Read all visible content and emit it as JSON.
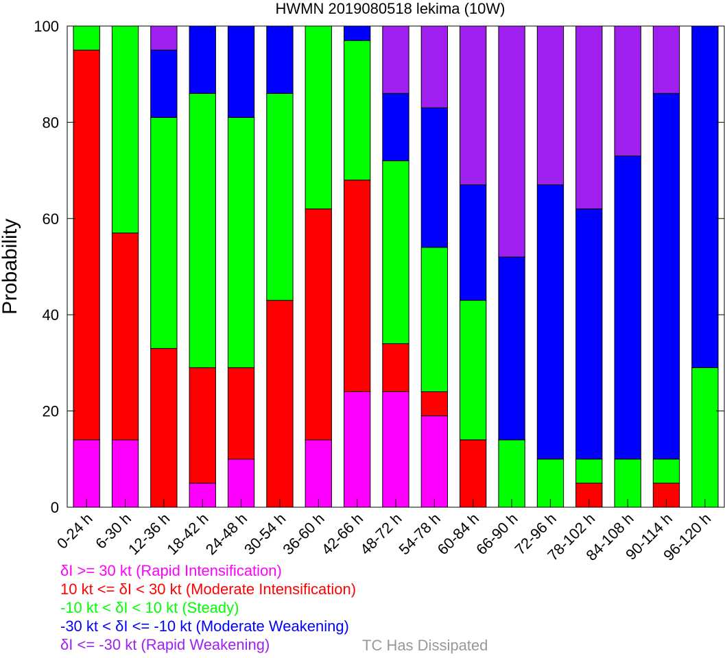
{
  "chart_data": {
    "type": "bar",
    "stacked": true,
    "title": "HWMN 2019080518 lekima (10W)",
    "ylabel": "Probability",
    "xlabel": "",
    "ylim": [
      0,
      100
    ],
    "yticks": [
      0,
      20,
      40,
      60,
      80,
      100
    ],
    "categories": [
      "0-24 h",
      "6-30 h",
      "12-36 h",
      "18-42 h",
      "24-48 h",
      "30-54 h",
      "36-60 h",
      "42-66 h",
      "48-72 h",
      "54-78 h",
      "60-84 h",
      "66-90 h",
      "72-96 h",
      "78-102 h",
      "84-108 h",
      "90-114 h",
      "96-120 h"
    ],
    "series": [
      {
        "name": "δI >= 30 kt (Rapid Intensification)",
        "color": "#ff00ff",
        "values": [
          14,
          14,
          0,
          5,
          10,
          0,
          14,
          24,
          24,
          19,
          0,
          0,
          0,
          0,
          0,
          0,
          0
        ]
      },
      {
        "name": "10 kt <= δI < 30 kt (Moderate Intensification)",
        "color": "#ff0000",
        "values": [
          81,
          43,
          33,
          24,
          19,
          43,
          48,
          44,
          10,
          5,
          14,
          0,
          0,
          5,
          0,
          5,
          0
        ]
      },
      {
        "name": "-10 kt < δI < 10 kt (Steady)",
        "color": "#00ff00",
        "values": [
          5,
          43,
          48,
          57,
          52,
          43,
          38,
          29,
          38,
          30,
          29,
          14,
          10,
          5,
          10,
          5,
          29
        ]
      },
      {
        "name": "-30 kt < δI <= -10 kt (Moderate Weakening)",
        "color": "#0000ff",
        "values": [
          0,
          0,
          14,
          14,
          19,
          14,
          0,
          3,
          14,
          29,
          24,
          38,
          57,
          52,
          63,
          76,
          71
        ]
      },
      {
        "name": "δI <= -30 kt (Rapid Weakening)",
        "color": "#a020f0",
        "values": [
          0,
          0,
          5,
          0,
          0,
          0,
          0,
          0,
          14,
          17,
          33,
          48,
          33,
          38,
          27,
          14,
          0
        ]
      }
    ],
    "dissipated_label": "TC Has Dissipated",
    "dissipated_color": "#999999",
    "grid": false
  }
}
